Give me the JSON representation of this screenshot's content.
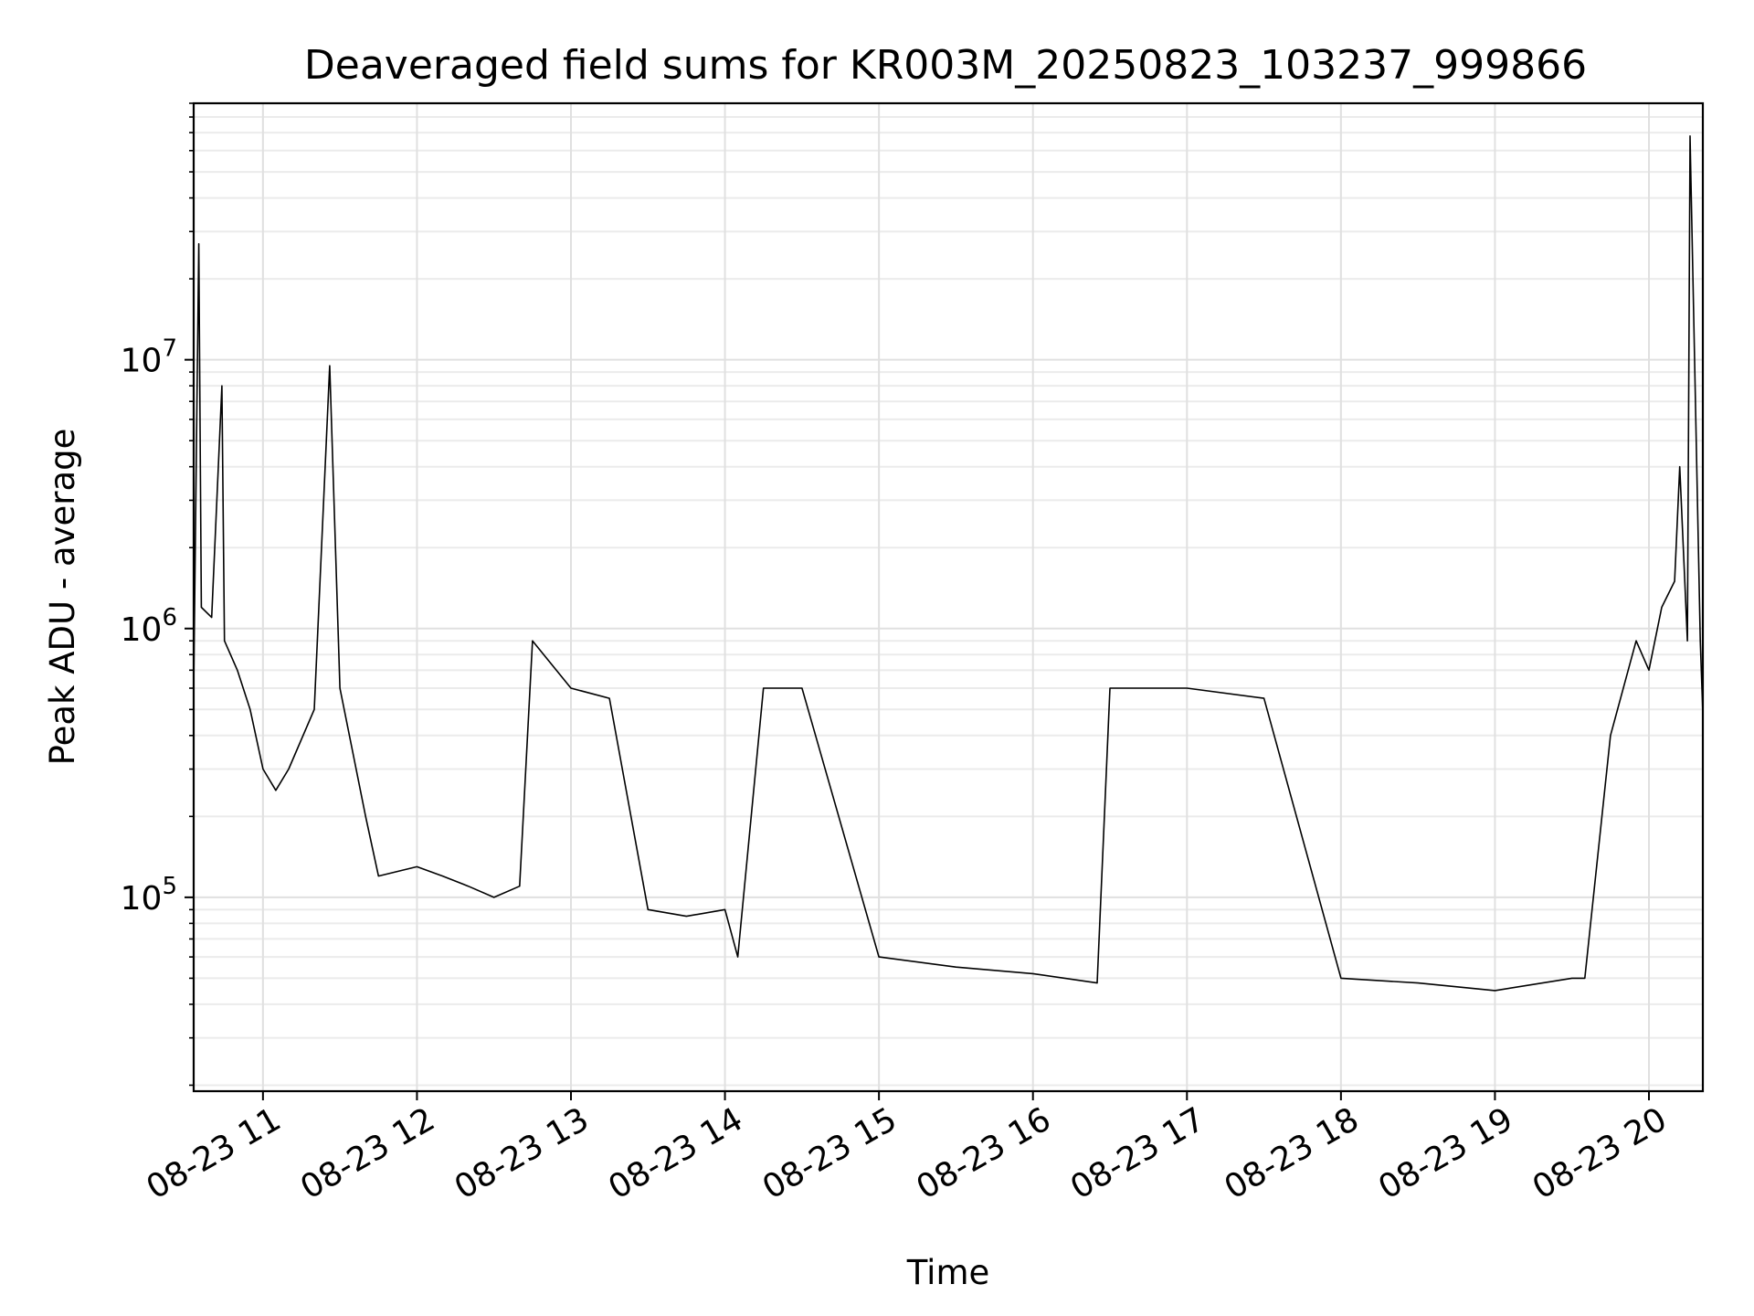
{
  "chart_data": {
    "type": "line",
    "title": "Deaveraged field sums for KR003M_20250823_103237_999866",
    "xlabel": "Time",
    "ylabel": "Peak ADU - average",
    "y_scale": "log",
    "ylim": [
      19000,
      90000000
    ],
    "xlim": [
      "2025-08-23 10:33",
      "2025-08-23 20:21"
    ],
    "grid": "on",
    "line_color": "#000000",
    "x_tick_labels": [
      "08-23 11",
      "08-23 12",
      "08-23 13",
      "08-23 14",
      "08-23 15",
      "08-23 16",
      "08-23 17",
      "08-23 18",
      "08-23 19",
      "08-23 20"
    ],
    "x_ticks": [
      "2025-08-23 11:00",
      "2025-08-23 12:00",
      "2025-08-23 13:00",
      "2025-08-23 14:00",
      "2025-08-23 15:00",
      "2025-08-23 16:00",
      "2025-08-23 17:00",
      "2025-08-23 18:00",
      "2025-08-23 19:00",
      "2025-08-23 20:00"
    ],
    "y_ticks": [
      {
        "label_base": "10",
        "label_exp": "5",
        "value": 100000
      },
      {
        "label_base": "10",
        "label_exp": "6",
        "value": 1000000
      },
      {
        "label_base": "10",
        "label_exp": "7",
        "value": 10000000
      }
    ],
    "series": [
      {
        "x": [
          "2025-08-23 10:33",
          "2025-08-23 10:35",
          "2025-08-23 10:36",
          "2025-08-23 10:40",
          "2025-08-23 10:44",
          "2025-08-23 10:45",
          "2025-08-23 10:50",
          "2025-08-23 10:55",
          "2025-08-23 11:00",
          "2025-08-23 11:05",
          "2025-08-23 11:10",
          "2025-08-23 11:20",
          "2025-08-23 11:26",
          "2025-08-23 11:30",
          "2025-08-23 11:40",
          "2025-08-23 11:45",
          "2025-08-23 12:00",
          "2025-08-23 12:10",
          "2025-08-23 12:20",
          "2025-08-23 12:30",
          "2025-08-23 12:40",
          "2025-08-23 12:45",
          "2025-08-23 13:00",
          "2025-08-23 13:15",
          "2025-08-23 13:30",
          "2025-08-23 13:45",
          "2025-08-23 14:00",
          "2025-08-23 14:05",
          "2025-08-23 14:15",
          "2025-08-23 14:30",
          "2025-08-23 15:00",
          "2025-08-23 15:30",
          "2025-08-23 16:00",
          "2025-08-23 16:25",
          "2025-08-23 16:30",
          "2025-08-23 16:45",
          "2025-08-23 17:00",
          "2025-08-23 17:30",
          "2025-08-23 18:00",
          "2025-08-23 18:30",
          "2025-08-23 19:00",
          "2025-08-23 19:30",
          "2025-08-23 19:35",
          "2025-08-23 19:45",
          "2025-08-23 19:55",
          "2025-08-23 20:00",
          "2025-08-23 20:05",
          "2025-08-23 20:10",
          "2025-08-23 20:12",
          "2025-08-23 20:15",
          "2025-08-23 20:16",
          "2025-08-23 20:20",
          "2025-08-23 20:21"
        ],
        "y": [
          600000,
          27000000,
          1200000,
          1100000,
          8000000,
          900000,
          700000,
          500000,
          300000,
          250000,
          300000,
          500000,
          9500000,
          600000,
          200000,
          120000,
          130000,
          120000,
          110000,
          100000,
          110000,
          900000,
          600000,
          550000,
          90000,
          85000,
          90000,
          60000,
          600000,
          600000,
          60000,
          55000,
          52000,
          48000,
          600000,
          600000,
          600000,
          550000,
          50000,
          48000,
          45000,
          50000,
          50000,
          400000,
          900000,
          700000,
          1200000,
          1500000,
          4000000,
          900000,
          68000000,
          900000,
          480000
        ]
      }
    ]
  }
}
